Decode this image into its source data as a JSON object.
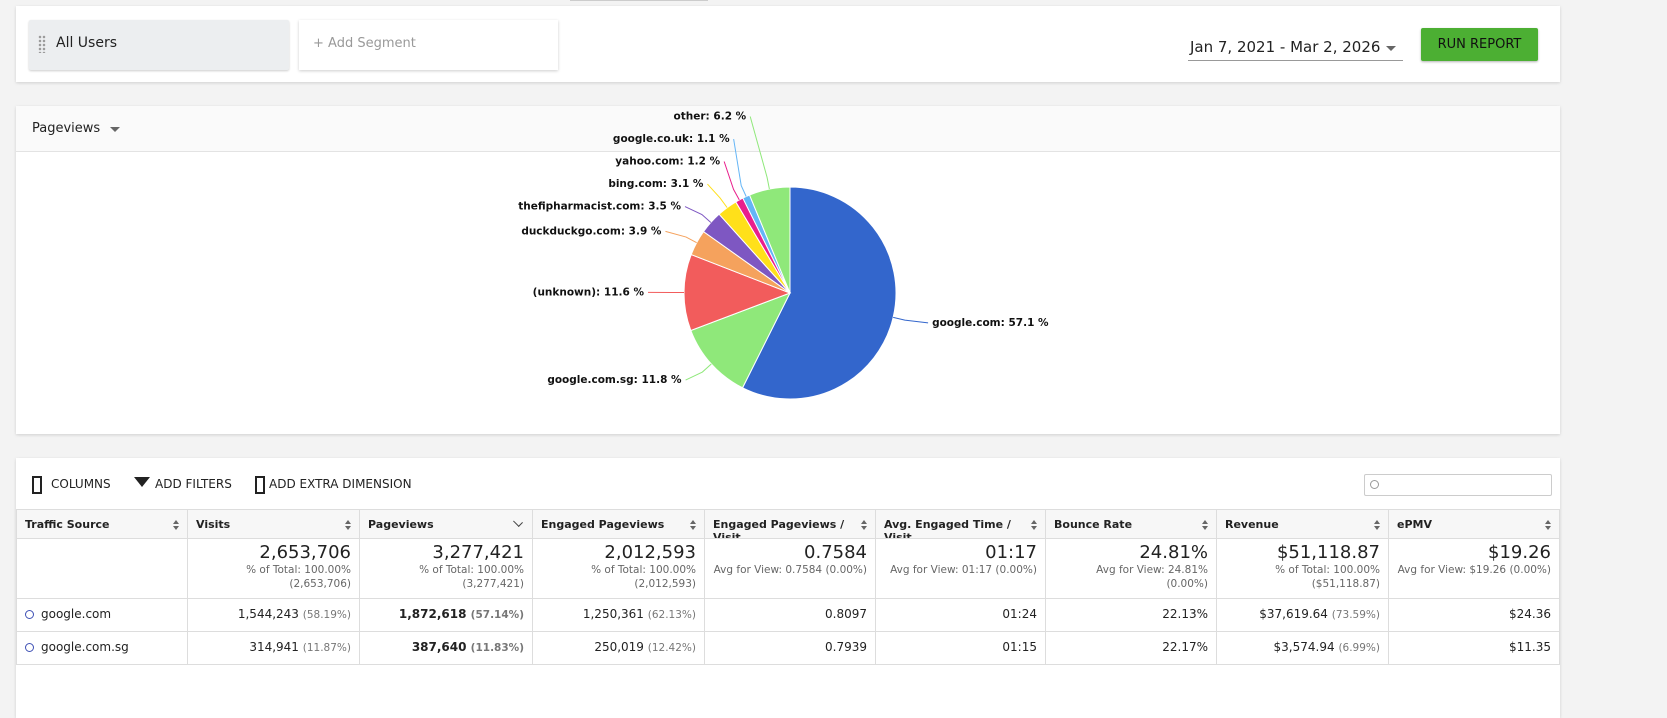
{
  "top_bar": {
    "segment": "All Users",
    "add_segment": "+ Add Segment",
    "date_range": "Jan 7, 2021 - Mar 2, 2026",
    "run_button": "RUN REPORT"
  },
  "metric_selector": "Pageviews",
  "chart_data": {
    "type": "pie",
    "categories": [
      "google.com",
      "google.com.sg",
      "(unknown)",
      "duckduckgo.com",
      "thefipharmacist.com",
      "bing.com",
      "yahoo.com",
      "google.co.uk",
      "other"
    ],
    "values": [
      57.1,
      11.8,
      11.6,
      3.9,
      3.5,
      3.1,
      1.2,
      1.1,
      6.2
    ],
    "value_labels": [
      "57.1 %",
      "11.8 %",
      "11.6 %",
      "3.9 %",
      "3.5 %",
      "3.1 %",
      "1.2 %",
      "1.1 %",
      "6.2 %"
    ],
    "colors": [
      "#3366cc",
      "#8fe87a",
      "#f25c5c",
      "#f5a25d",
      "#7e57c2",
      "#ffe01a",
      "#e91e8c",
      "#64b5f6",
      "#8fe87a"
    ]
  },
  "toolbar": {
    "columns": "COLUMNS",
    "filters": "ADD FILTERS",
    "dimension": "ADD EXTRA DIMENSION"
  },
  "table": {
    "columns": [
      "Traffic Source",
      "Visits",
      "Pageviews",
      "Engaged Pageviews",
      "Engaged Pageviews / Visit",
      "Avg. Engaged Time / Visit",
      "Bounce Rate",
      "Revenue",
      "ePMV"
    ],
    "totals": [
      {
        "main": "2,653,706",
        "sub": [
          "% of Total: 100.00%",
          "(2,653,706)"
        ]
      },
      {
        "main": "3,277,421",
        "sub": [
          "% of Total: 100.00% (3,277,421)"
        ]
      },
      {
        "main": "2,012,593",
        "sub": [
          "% of Total: 100.00%",
          "(2,012,593)"
        ]
      },
      {
        "main": "0.7584",
        "sub": [
          "Avg for View: 0.7584 (0.00%)"
        ]
      },
      {
        "main": "01:17",
        "sub": [
          "Avg for View: 01:17 (0.00%)"
        ]
      },
      {
        "main": "24.81%",
        "sub": [
          "Avg for View: 24.81% (0.00%)"
        ]
      },
      {
        "main": "$51,118.87",
        "sub": [
          "% of Total: 100.00%",
          "($51,118.87)"
        ]
      },
      {
        "main": "$19.26",
        "sub": [
          "Avg for View: $19.26 (0.00%)"
        ]
      }
    ],
    "rows": [
      {
        "source": "google.com",
        "cells": [
          [
            "1,544,243",
            "(58.19%)"
          ],
          [
            "1,872,618",
            "(57.14%)"
          ],
          [
            "1,250,361",
            "(62.13%)"
          ],
          [
            "0.8097"
          ],
          [
            "01:24"
          ],
          [
            "22.13%"
          ],
          [
            "$37,619.64",
            "(73.59%)"
          ],
          [
            "$24.36"
          ]
        ]
      },
      {
        "source": "google.com.sg",
        "cells": [
          [
            "314,941",
            "(11.87%)"
          ],
          [
            "387,640",
            "(11.83%)"
          ],
          [
            "250,019",
            "(12.42%)"
          ],
          [
            "0.7939"
          ],
          [
            "01:15"
          ],
          [
            "22.17%"
          ],
          [
            "$3,574.94",
            "(6.99%)"
          ],
          [
            "$11.35"
          ]
        ]
      }
    ]
  }
}
